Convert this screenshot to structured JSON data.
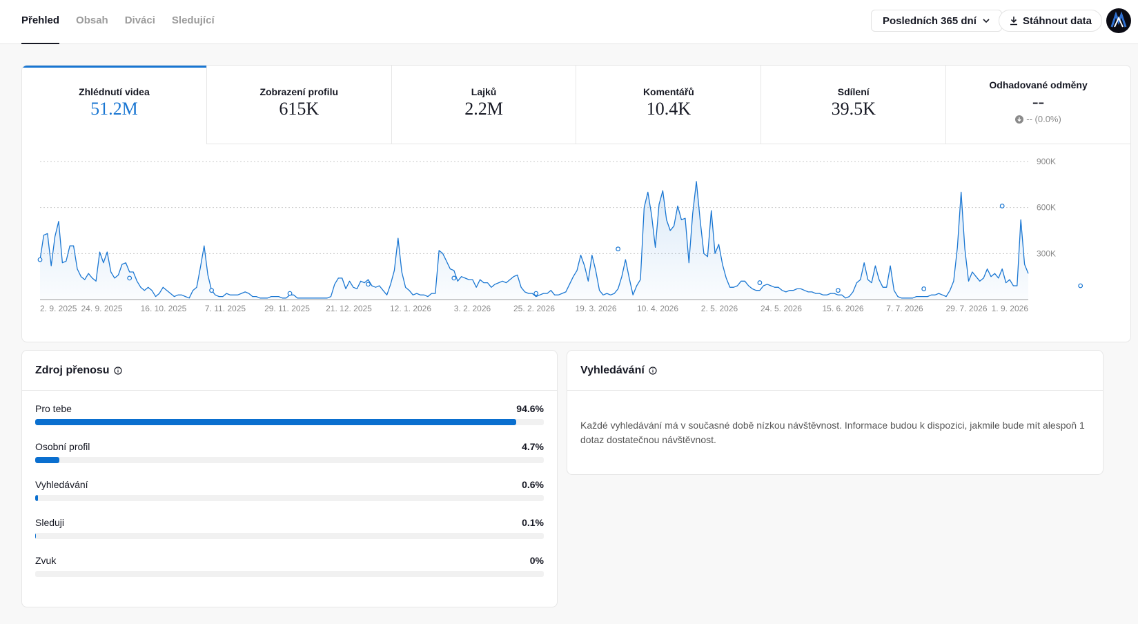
{
  "tabs": [
    "Přehled",
    "Obsah",
    "Diváci",
    "Sledující"
  ],
  "range_label": "Posledních 365 dní",
  "download_label": "Stáhnout data",
  "metrics": [
    {
      "label": "Zhlédnutí videa",
      "value": "51.2M"
    },
    {
      "label": "Zobrazení profilu",
      "value": "615K"
    },
    {
      "label": "Lajků",
      "value": "2.2M"
    },
    {
      "label": "Komentářů",
      "value": "10.4K"
    },
    {
      "label": "Sdílení",
      "value": "39.5K"
    },
    {
      "label": "Odhadované odměny",
      "value": "--",
      "change": "-- (0.0%)"
    }
  ],
  "colors": {
    "accent": "#1976d2",
    "bar": "#0a6fcf"
  },
  "chart_data": {
    "type": "area",
    "series": [
      {
        "name": "Zhlédnutí videa",
        "values": [
          260000,
          420000,
          430000,
          220000,
          410000,
          510000,
          240000,
          250000,
          350000,
          350000,
          200000,
          150000,
          130000,
          170000,
          140000,
          120000,
          310000,
          240000,
          310000,
          180000,
          140000,
          160000,
          230000,
          240000,
          180000,
          180000,
          120000,
          80000,
          60000,
          80000,
          60000,
          20000,
          40000,
          80000,
          60000,
          40000,
          20000,
          30000,
          30000,
          20000,
          10000,
          60000,
          80000,
          210000,
          350000,
          160000,
          60000,
          30000,
          20000,
          20000,
          40000,
          30000,
          30000,
          30000,
          40000,
          50000,
          40000,
          20000,
          20000,
          10000,
          10000,
          10000,
          20000,
          20000,
          20000,
          10000,
          10000,
          30000,
          30000,
          10000,
          10000,
          10000,
          10000,
          10000,
          10000,
          10000,
          10000,
          10000,
          20000,
          100000,
          140000,
          140000,
          70000,
          120000,
          80000,
          70000,
          120000,
          110000,
          130000,
          90000,
          80000,
          90000,
          60000,
          30000,
          100000,
          190000,
          400000,
          180000,
          80000,
          60000,
          30000,
          40000,
          30000,
          30000,
          20000,
          40000,
          40000,
          320000,
          300000,
          250000,
          200000,
          190000,
          120000,
          150000,
          140000,
          130000,
          130000,
          80000,
          130000,
          110000,
          110000,
          80000,
          100000,
          110000,
          120000,
          110000,
          130000,
          150000,
          160000,
          80000,
          50000,
          40000,
          40000,
          20000,
          30000,
          40000,
          40000,
          60000,
          30000,
          30000,
          40000,
          50000,
          100000,
          150000,
          190000,
          290000,
          220000,
          120000,
          290000,
          190000,
          60000,
          30000,
          40000,
          30000,
          40000,
          70000,
          150000,
          260000,
          140000,
          30000,
          90000,
          130000,
          600000,
          700000,
          550000,
          340000,
          620000,
          710000,
          520000,
          450000,
          480000,
          610000,
          520000,
          530000,
          240000,
          560000,
          770000,
          520000,
          300000,
          280000,
          580000,
          300000,
          360000,
          230000,
          140000,
          80000,
          80000,
          90000,
          120000,
          120000,
          90000,
          70000,
          60000,
          60000,
          90000,
          100000,
          90000,
          80000,
          80000,
          60000,
          50000,
          60000,
          60000,
          70000,
          70000,
          60000,
          50000,
          50000,
          40000,
          40000,
          30000,
          30000,
          40000,
          40000,
          30000,
          30000,
          10000,
          20000,
          50000,
          110000,
          130000,
          240000,
          130000,
          110000,
          220000,
          130000,
          80000,
          80000,
          220000,
          60000,
          20000,
          10000,
          10000,
          10000,
          10000,
          20000,
          20000,
          20000,
          20000,
          30000,
          30000,
          40000,
          30000,
          20000,
          60000,
          120000,
          340000,
          700000,
          330000,
          120000,
          180000,
          150000,
          120000,
          140000,
          200000,
          150000,
          170000,
          140000,
          200000,
          110000,
          130000,
          90000,
          90000,
          520000,
          230000,
          170000
        ]
      }
    ],
    "x_tick_labels": [
      "2. 9. 2025",
      "24. 9. 2025",
      "16. 10. 2025",
      "7. 11. 2025",
      "29. 11. 2025",
      "21. 12. 2025",
      "12. 1. 2026",
      "3. 2. 2026",
      "25. 2. 2026",
      "19. 3. 2026",
      "10. 4. 2026",
      "2. 5. 2026",
      "24. 5. 2026",
      "15. 6. 2026",
      "7. 7. 2026",
      "29. 7. 2026",
      "1. 9. 2026"
    ],
    "y_tick_labels": [
      "900K",
      "600K",
      "300K"
    ],
    "y_ticks": [
      900000,
      600000,
      300000
    ],
    "ylim": [
      0,
      900000
    ],
    "grid": true,
    "marker_points": [
      {
        "index": 0,
        "value": 260000
      },
      {
        "index": 24,
        "value": 140000
      },
      {
        "index": 46,
        "value": 60000
      },
      {
        "index": 67,
        "value": 40000
      },
      {
        "index": 88,
        "value": 100000
      },
      {
        "index": 111,
        "value": 140000
      },
      {
        "index": 133,
        "value": 40000
      },
      {
        "index": 155,
        "value": 330000
      },
      {
        "index": 193,
        "value": 110000
      },
      {
        "index": 214,
        "value": 60000
      },
      {
        "index": 237,
        "value": 70000
      },
      {
        "index": 258,
        "value": 610000
      },
      {
        "index": 279,
        "value": 90000
      },
      {
        "index": 301,
        "value": 40000
      },
      {
        "index": 323,
        "value": 130000
      },
      {
        "index": 345,
        "value": 20000
      },
      {
        "index": 357,
        "value": 90000
      },
      {
        "index": 359,
        "value": 160000
      }
    ]
  },
  "traffic": {
    "title": "Zdroj přenosu",
    "sources": [
      {
        "name": "Pro tebe",
        "pct": "94.6%",
        "fraction": 0.946
      },
      {
        "name": "Osobní profil",
        "pct": "4.7%",
        "fraction": 0.047
      },
      {
        "name": "Vyhledávání",
        "pct": "0.6%",
        "fraction": 0.006
      },
      {
        "name": "Sleduji",
        "pct": "0.1%",
        "fraction": 0.001
      },
      {
        "name": "Zvuk",
        "pct": "0%",
        "fraction": 0
      }
    ]
  },
  "search": {
    "title": "Vyhledávání",
    "text": "Každé vyhledávání má v současné době nízkou návštěvnost. Informace budou k dispozici, jakmile bude mít alespoň 1 dotaz dostatečnou návštěvnost."
  }
}
